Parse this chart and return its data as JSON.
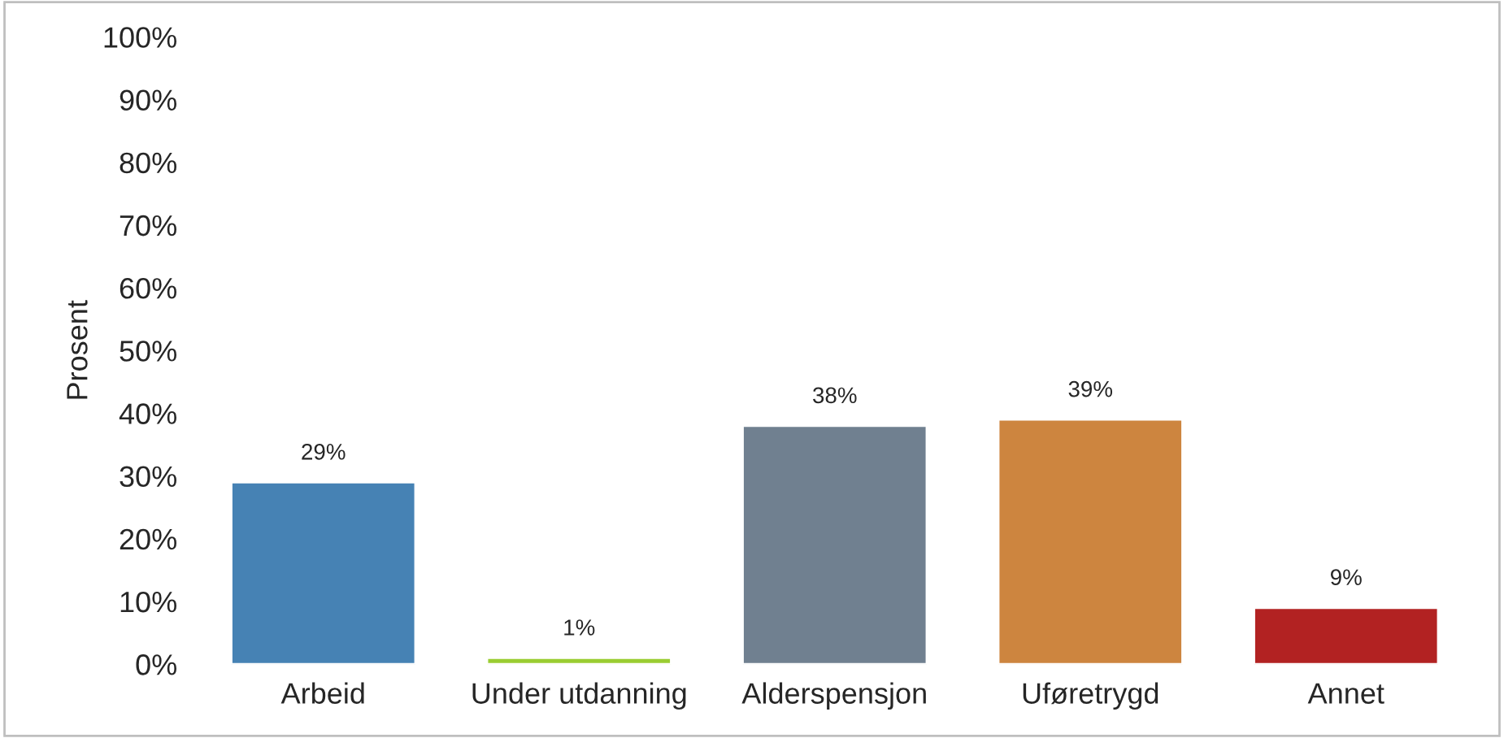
{
  "chart_data": {
    "type": "bar",
    "ylabel": "Prosent",
    "categories": [
      "Arbeid",
      "Under utdanning",
      "Alderspensjon",
      "Uføretrygd",
      "Annet"
    ],
    "values": [
      29,
      1,
      38,
      39,
      9
    ],
    "colors": [
      "#4682b4",
      "#9acd32",
      "#708090",
      "#cd853f",
      "#b22222"
    ],
    "value_labels": [
      "29%",
      "1%",
      "38%",
      "39%",
      "9%"
    ],
    "ylim": [
      0,
      100
    ],
    "yticks": [
      {
        "value": 0,
        "label": "0%"
      },
      {
        "value": 10,
        "label": "10%"
      },
      {
        "value": 20,
        "label": "20%"
      },
      {
        "value": 30,
        "label": "30%"
      },
      {
        "value": 40,
        "label": "40%"
      },
      {
        "value": 50,
        "label": "50%"
      },
      {
        "value": 60,
        "label": "60%"
      },
      {
        "value": 70,
        "label": "70%"
      },
      {
        "value": 80,
        "label": "80%"
      },
      {
        "value": 90,
        "label": "90%"
      },
      {
        "value": 100,
        "label": "100%"
      }
    ],
    "grid": false,
    "legend": false
  }
}
